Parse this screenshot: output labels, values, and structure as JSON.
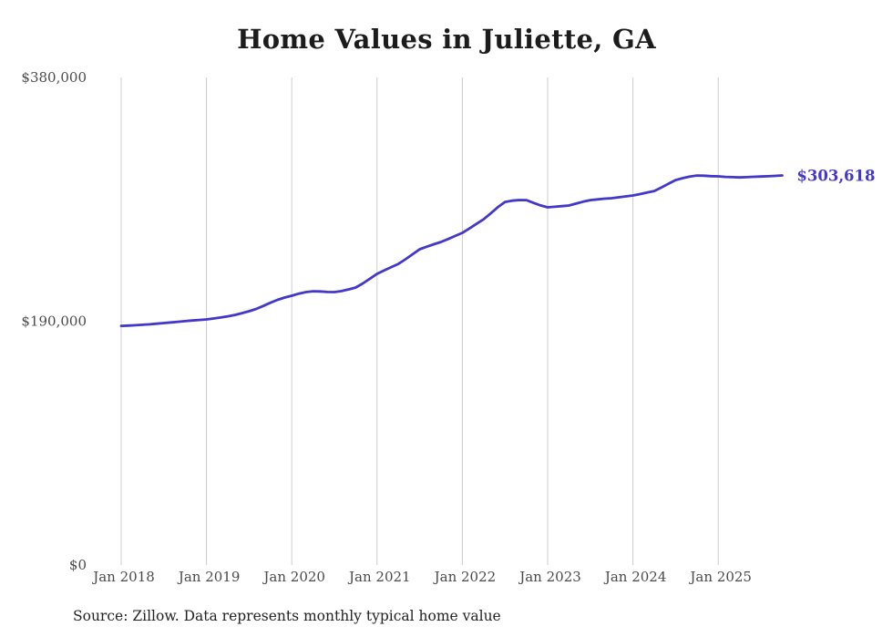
{
  "title": "Home Values in Juliette, GA",
  "source_note": "Source: Zillow. Data represents monthly typical home value",
  "end_label": "$303,618",
  "colors": {
    "line": "#4338ca",
    "grid": "#cccccc",
    "axis_text": "#4a4a4a",
    "title_text": "#1c1c1c",
    "source_text": "#222222",
    "background": "#ffffff"
  },
  "chart_data": {
    "type": "line",
    "title": "Home Values in Juliette, GA",
    "xlabel": "",
    "ylabel": "",
    "ylim": [
      0,
      380000
    ],
    "y_ticks": [
      0,
      190000,
      380000
    ],
    "y_tick_labels": [
      "$0",
      "$190,000",
      "$380,000"
    ],
    "x_tick_labels": [
      "Jan 2018",
      "Jan 2019",
      "Jan 2020",
      "Jan 2021",
      "Jan 2022",
      "Jan 2023",
      "Jan 2024",
      "Jan 2025"
    ],
    "grid": "vertical-only",
    "legend": "none",
    "end_label": "$303,618",
    "last_value": 303618,
    "series": [
      {
        "name": "Typical home value",
        "x": [
          "2018-01",
          "2018-02",
          "2018-03",
          "2018-04",
          "2018-05",
          "2018-06",
          "2018-07",
          "2018-08",
          "2018-09",
          "2018-10",
          "2018-11",
          "2018-12",
          "2019-01",
          "2019-02",
          "2019-03",
          "2019-04",
          "2019-05",
          "2019-06",
          "2019-07",
          "2019-08",
          "2019-09",
          "2019-10",
          "2019-11",
          "2019-12",
          "2020-01",
          "2020-02",
          "2020-03",
          "2020-04",
          "2020-05",
          "2020-06",
          "2020-07",
          "2020-08",
          "2020-09",
          "2020-10",
          "2020-11",
          "2020-12",
          "2021-01",
          "2021-02",
          "2021-03",
          "2021-04",
          "2021-05",
          "2021-06",
          "2021-07",
          "2021-08",
          "2021-09",
          "2021-10",
          "2021-11",
          "2021-12",
          "2022-01",
          "2022-02",
          "2022-03",
          "2022-04",
          "2022-05",
          "2022-06",
          "2022-07",
          "2022-08",
          "2022-09",
          "2022-10",
          "2022-11",
          "2022-12",
          "2023-01",
          "2023-02",
          "2023-03",
          "2023-04",
          "2023-05",
          "2023-06",
          "2023-07",
          "2023-08",
          "2023-09",
          "2023-10",
          "2023-11",
          "2023-12",
          "2024-01",
          "2024-02",
          "2024-03",
          "2024-04",
          "2024-05",
          "2024-06",
          "2024-07",
          "2024-08",
          "2024-09",
          "2024-10",
          "2024-11",
          "2024-12",
          "2025-01",
          "2025-02",
          "2025-03",
          "2025-04",
          "2025-05",
          "2025-06",
          "2025-07",
          "2025-08",
          "2025-09",
          "2025-10"
        ],
        "values": [
          186400,
          186600,
          186900,
          187200,
          187600,
          188100,
          188600,
          189100,
          189600,
          190100,
          190600,
          191000,
          191400,
          192100,
          192900,
          193800,
          194900,
          196300,
          197800,
          199600,
          201900,
          204400,
          206700,
          208500,
          209900,
          211500,
          212700,
          213400,
          213200,
          212800,
          212700,
          213500,
          214800,
          216300,
          219500,
          223200,
          226900,
          229600,
          232200,
          234700,
          238300,
          242200,
          246100,
          248100,
          250000,
          251800,
          254100,
          256500,
          258900,
          262300,
          265900,
          269500,
          274100,
          278900,
          283000,
          284000,
          284500,
          284400,
          282300,
          280300,
          278800,
          279200,
          279700,
          280200,
          281700,
          283200,
          284400,
          285000,
          285500,
          285900,
          286600,
          287300,
          288000,
          289100,
          290300,
          291500,
          294300,
          297200,
          300000,
          301500,
          302800,
          303600,
          303400,
          303100,
          302900,
          302500,
          302300,
          302100,
          302300,
          302600,
          302800,
          303000,
          303300,
          303618
        ]
      }
    ]
  }
}
